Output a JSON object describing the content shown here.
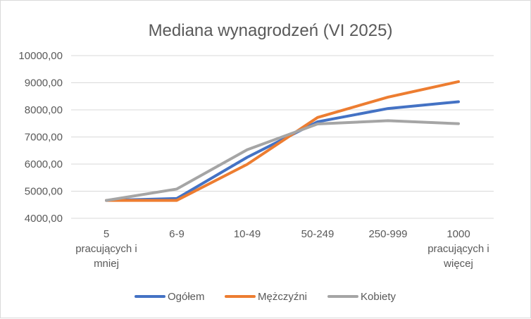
{
  "chart_data": {
    "type": "line",
    "title": "Mediana wynagrodzeń (VI 2025)",
    "xlabel": "",
    "ylabel": "",
    "ylim": [
      4000,
      10000
    ],
    "yticks": [
      "4000,00",
      "5000,00",
      "6000,00",
      "7000,00",
      "8000,00",
      "9000,00",
      "10000,00"
    ],
    "categories": [
      [
        "5",
        "pracujących i",
        "mniej"
      ],
      [
        "6-9"
      ],
      [
        "10-49"
      ],
      [
        "50-249"
      ],
      [
        "250-999"
      ],
      [
        "1000",
        "pracujących i",
        "więcej"
      ]
    ],
    "grid": true,
    "legend_position": "bottom",
    "series": [
      {
        "name": "Ogółem",
        "color": "#4472c4",
        "values": [
          4660,
          4730,
          6250,
          7560,
          8050,
          8300
        ]
      },
      {
        "name": "Mężczyźni",
        "color": "#ed7d31",
        "values": [
          4660,
          4660,
          5990,
          7720,
          8470,
          9040
        ]
      },
      {
        "name": "Kobiety",
        "color": "#a5a5a5",
        "values": [
          4660,
          5080,
          6530,
          7480,
          7600,
          7490
        ]
      }
    ]
  }
}
